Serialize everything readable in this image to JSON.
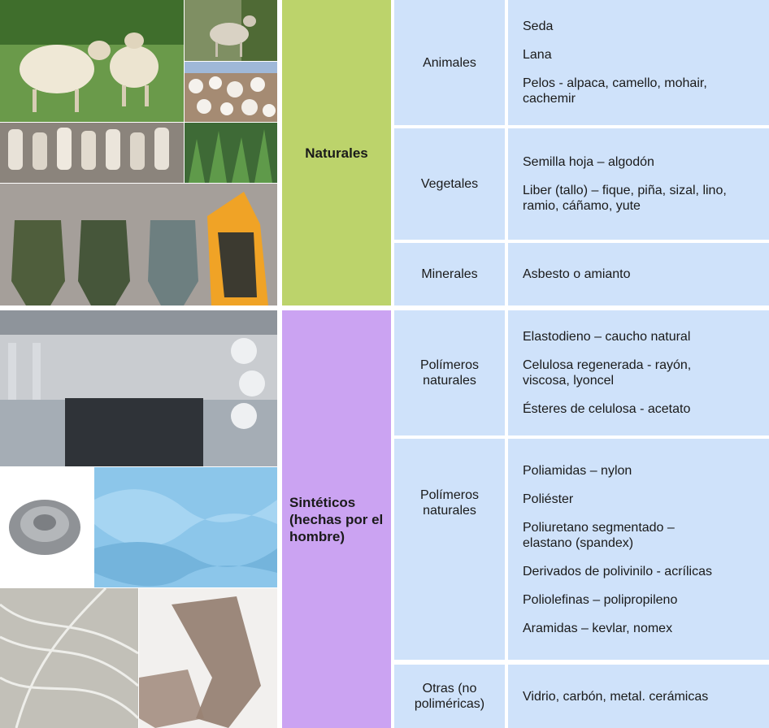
{
  "categories": {
    "naturales": "Naturales",
    "sinteticos": "Sintéticos (hechas por el hombre)"
  },
  "rows": [
    {
      "sub": "Animales",
      "items": [
        "Seda",
        "Lana",
        "Pelos - alpaca, camello, mohair, cachemir"
      ]
    },
    {
      "sub": "Vegetales",
      "items": [
        "Semilla hoja – algodón",
        "Liber (tallo) – fique, piña, sizal, lino, ramio, cáñamo, yute"
      ]
    },
    {
      "sub": "Minerales",
      "items": [
        "Asbesto o amianto"
      ]
    },
    {
      "sub": "Polímeros naturales",
      "items": [
        "Elastodieno – caucho natural",
        "Celulosa regenerada - rayón, viscosa, lyoncel",
        "Ésteres de celulosa - acetato"
      ]
    },
    {
      "sub": "Polímeros naturales",
      "items": [
        "Poliamidas – nylon",
        "Poliéster",
        "Poliuretano segmentado – elastano (spandex)",
        "Derivados de polivinilo - acrílicas",
        "Poliolefinas – polipropileno",
        "Aramidas – kevlar, nomex"
      ]
    },
    {
      "sub": "Otras (no poliméricas)",
      "items": [
        "Vidrio, carbón, metal. cerámicas"
      ]
    }
  ],
  "colors": {
    "naturales": "#bcd36b",
    "sinteticos": "#cba3f2",
    "cells": "#cfe2fa"
  },
  "photos": [
    "sheep-photo",
    "goat-photo",
    "cotton-photo",
    "yarn-spools-photo",
    "plants-photo",
    "uniforms-fire-photo",
    "knitting-machine-photo",
    "steel-wool-photo",
    "blue-fabric-photo",
    "glass-fiber-photo",
    "stockings-photo"
  ]
}
